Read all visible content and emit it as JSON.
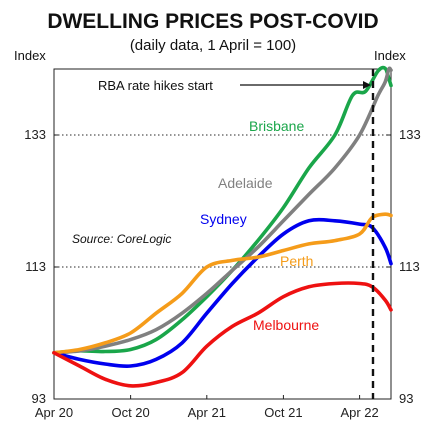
{
  "chart_data": {
    "type": "line",
    "title": "DWELLING PRICES POST-COVID",
    "subtitle": "(daily data, 1 April = 100)",
    "ylabel_left": "Index",
    "ylabel_right": "Index",
    "ylim": [
      93,
      143
    ],
    "yticks": [
      93,
      113,
      133
    ],
    "xlim": [
      "2020-04-01",
      "2022-06-15"
    ],
    "xticks": [
      {
        "date": "2020-04-01",
        "label": "Apr 20"
      },
      {
        "date": "2020-10-01",
        "label": "Oct 20"
      },
      {
        "date": "2021-04-01",
        "label": "Apr 21"
      },
      {
        "date": "2021-10-01",
        "label": "Oct 21"
      },
      {
        "date": "2022-04-01",
        "label": "Apr 22"
      }
    ],
    "grid": "dotted horizontal at 113 and 133",
    "source": "Source: CoreLogic",
    "annotation": {
      "text": "RBA rate hikes start",
      "date": "2022-05-03"
    },
    "series": [
      {
        "name": "Brisbane",
        "color": "#1aa64a",
        "points": [
          [
            "2020-04-01",
            100
          ],
          [
            "2020-06-01",
            100.3
          ],
          [
            "2020-08-01",
            100.2
          ],
          [
            "2020-10-01",
            100.5
          ],
          [
            "2020-12-01",
            102
          ],
          [
            "2021-02-01",
            105
          ],
          [
            "2021-04-01",
            108.5
          ],
          [
            "2021-06-01",
            112.5
          ],
          [
            "2021-08-01",
            117
          ],
          [
            "2021-10-01",
            122
          ],
          [
            "2021-12-01",
            128
          ],
          [
            "2022-02-01",
            133
          ],
          [
            "2022-03-15",
            139
          ],
          [
            "2022-04-15",
            139.6
          ],
          [
            "2022-05-15",
            142.7
          ],
          [
            "2022-06-01",
            143.1
          ],
          [
            "2022-06-10",
            141.5
          ],
          [
            "2022-06-15",
            140.5
          ]
        ]
      },
      {
        "name": "Adelaide",
        "color": "#808080",
        "points": [
          [
            "2020-04-01",
            100
          ],
          [
            "2020-06-01",
            100.3
          ],
          [
            "2020-08-01",
            101
          ],
          [
            "2020-10-01",
            102
          ],
          [
            "2020-12-01",
            103.5
          ],
          [
            "2021-02-01",
            106
          ],
          [
            "2021-04-01",
            109
          ],
          [
            "2021-06-01",
            112.5
          ],
          [
            "2021-08-01",
            116
          ],
          [
            "2021-10-01",
            120
          ],
          [
            "2021-12-01",
            124
          ],
          [
            "2022-02-01",
            128
          ],
          [
            "2022-04-01",
            133
          ],
          [
            "2022-05-15",
            139
          ],
          [
            "2022-06-01",
            141
          ],
          [
            "2022-06-10",
            143
          ],
          [
            "2022-06-15",
            142.8
          ]
        ]
      },
      {
        "name": "Sydney",
        "color": "#0000ee",
        "points": [
          [
            "2020-04-01",
            100
          ],
          [
            "2020-06-01",
            99
          ],
          [
            "2020-08-01",
            98.3
          ],
          [
            "2020-10-01",
            98
          ],
          [
            "2020-12-01",
            99
          ],
          [
            "2021-02-01",
            101.5
          ],
          [
            "2021-04-01",
            106
          ],
          [
            "2021-06-01",
            110.5
          ],
          [
            "2021-08-01",
            114.5
          ],
          [
            "2021-10-01",
            118
          ],
          [
            "2021-12-01",
            120
          ],
          [
            "2022-02-01",
            120
          ],
          [
            "2022-04-01",
            119.5
          ],
          [
            "2022-05-01",
            119
          ],
          [
            "2022-06-01",
            116
          ],
          [
            "2022-06-15",
            113.5
          ]
        ]
      },
      {
        "name": "Perth",
        "color": "#f59c1a",
        "points": [
          [
            "2020-04-01",
            100
          ],
          [
            "2020-06-01",
            100.5
          ],
          [
            "2020-08-01",
            101.5
          ],
          [
            "2020-10-01",
            103
          ],
          [
            "2020-12-01",
            106
          ],
          [
            "2021-02-01",
            109
          ],
          [
            "2021-04-01",
            113
          ],
          [
            "2021-06-01",
            114
          ],
          [
            "2021-08-01",
            114.5
          ],
          [
            "2021-10-01",
            115.5
          ],
          [
            "2021-12-01",
            116.5
          ],
          [
            "2022-02-01",
            117
          ],
          [
            "2022-04-01",
            118
          ],
          [
            "2022-05-01",
            120.5
          ],
          [
            "2022-06-01",
            121
          ],
          [
            "2022-06-15",
            120.8
          ]
        ]
      },
      {
        "name": "Melbourne",
        "color": "#ee1111",
        "points": [
          [
            "2020-04-01",
            100
          ],
          [
            "2020-06-01",
            98
          ],
          [
            "2020-08-01",
            96
          ],
          [
            "2020-10-01",
            95
          ],
          [
            "2020-12-01",
            95.5
          ],
          [
            "2021-02-01",
            97
          ],
          [
            "2021-04-01",
            101
          ],
          [
            "2021-06-01",
            104
          ],
          [
            "2021-08-01",
            106
          ],
          [
            "2021-10-01",
            108.5
          ],
          [
            "2021-12-01",
            110
          ],
          [
            "2022-02-01",
            110.5
          ],
          [
            "2022-04-01",
            110.5
          ],
          [
            "2022-05-01",
            110
          ],
          [
            "2022-06-01",
            108
          ],
          [
            "2022-06-15",
            106.5
          ]
        ]
      }
    ]
  }
}
